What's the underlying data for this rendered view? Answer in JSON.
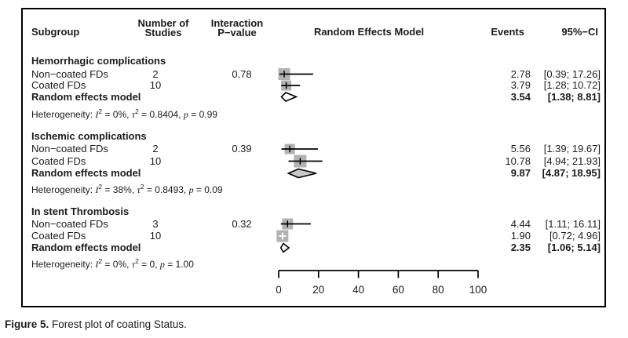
{
  "figure": {
    "caption_label": "Figure 5.",
    "caption_text": " Forest plot of coating Status."
  },
  "header": {
    "subgroup": "Subgroup",
    "studies_line1": "Number of",
    "studies_line2": "Studies",
    "interaction_line1": "Interaction",
    "interaction_line2": "P−value",
    "model": "Random Effects Model",
    "events": "Events",
    "ci": "95%−CI"
  },
  "groups": [
    {
      "title": "Hemorrhagic complications",
      "rows": [
        {
          "label": "Non−coated FDs",
          "studies": "2",
          "pvalue": "0.78",
          "events": "2.78",
          "ci": "[0.39; 17.26]"
        },
        {
          "label": "Coated FDs",
          "studies": "10",
          "events": "3.79",
          "ci": "[1.28; 10.72]"
        }
      ],
      "summary": {
        "label": "Random effects model",
        "events": "3.54",
        "ci": "[1.38;  8.81]"
      },
      "het": [
        "Heterogeneity: ",
        "I",
        "2",
        " = 0%, ",
        "τ",
        "2",
        " = 0.8404, ",
        "p",
        " = 0.99"
      ]
    },
    {
      "title": "Ischemic complications",
      "rows": [
        {
          "label": "Non−coated FDs",
          "studies": "2",
          "pvalue": "0.39",
          "events": "5.56",
          "ci": "[1.39; 19.67]"
        },
        {
          "label": "Coated FDs",
          "studies": "10",
          "events": "10.78",
          "ci": "[4.94; 21.93]"
        }
      ],
      "summary": {
        "label": "Random effects model",
        "events": "9.87",
        "ci": "[4.87; 18.95]"
      },
      "het": [
        "Heterogeneity: ",
        "I",
        "2",
        " = 38%, ",
        "τ",
        "2",
        " = 0.8493, ",
        "p",
        " = 0.09"
      ]
    },
    {
      "title": "In stent Thrombosis",
      "rows": [
        {
          "label": "Non−coated FDs",
          "studies": "3",
          "pvalue": "0.32",
          "events": "4.44",
          "ci": "[1.11; 16.11]"
        },
        {
          "label": "Coated FDs",
          "studies": "10",
          "events": "1.90",
          "ci": "[0.72;  4.96]"
        }
      ],
      "summary": {
        "label": "Random effects model",
        "events": "2.35",
        "ci": "[1.06;  5.14]"
      },
      "het": [
        "Heterogeneity: ",
        "I",
        "2",
        " = 0%, ",
        "τ",
        "2",
        " = 0, ",
        "p",
        " = 1.00"
      ]
    }
  ],
  "chart_data": {
    "type": "forest",
    "xlim": [
      0,
      100
    ],
    "x_ticks": [
      0,
      20,
      40,
      60,
      80,
      100
    ],
    "marker_color": "#b2b2b2",
    "line_color": "#000000",
    "groups": [
      {
        "name": "Hemorrhagic complications",
        "interaction_p": 0.78,
        "studies": [
          {
            "label": "Non-coated FDs",
            "n_studies": 2,
            "events_pct": 2.78,
            "ci": [
              0.39,
              17.26
            ],
            "marker_size": 15,
            "style": "line"
          },
          {
            "label": "Coated FDs",
            "n_studies": 10,
            "events_pct": 3.79,
            "ci": [
              1.28,
              10.72
            ],
            "marker_size": 13,
            "style": "line"
          }
        ],
        "summary": {
          "estimate": 3.54,
          "ci": [
            1.38,
            8.81
          ],
          "fill": "#ffffff"
        },
        "heterogeneity": {
          "I2": "0%",
          "tau2": "0.8404",
          "p": "0.99"
        }
      },
      {
        "name": "Ischemic complications",
        "interaction_p": 0.39,
        "studies": [
          {
            "label": "Non-coated FDs",
            "n_studies": 2,
            "events_pct": 5.56,
            "ci": [
              1.39,
              19.67
            ],
            "marker_size": 13,
            "style": "line"
          },
          {
            "label": "Coated FDs",
            "n_studies": 10,
            "events_pct": 10.78,
            "ci": [
              4.94,
              21.93
            ],
            "marker_size": 16,
            "style": "line"
          }
        ],
        "summary": {
          "estimate": 9.87,
          "ci": [
            4.87,
            18.95
          ],
          "fill": "#c9c9c9"
        },
        "heterogeneity": {
          "I2": "38%",
          "tau2": "0.8493",
          "p": "0.09"
        }
      },
      {
        "name": "In stent Thrombosis",
        "interaction_p": 0.32,
        "studies": [
          {
            "label": "Non-coated FDs",
            "n_studies": 3,
            "events_pct": 4.44,
            "ci": [
              1.11,
              16.11
            ],
            "marker_size": 14,
            "style": "line"
          },
          {
            "label": "Coated FDs",
            "n_studies": 10,
            "events_pct": 1.9,
            "ci": [
              0.72,
              4.96
            ],
            "marker_size": 15,
            "style": "white-cross"
          }
        ],
        "summary": {
          "estimate": 2.35,
          "ci": [
            1.06,
            5.14
          ],
          "fill": "#ffffff"
        },
        "heterogeneity": {
          "I2": "0%",
          "tau2": "0",
          "p": "1.00"
        }
      }
    ]
  }
}
